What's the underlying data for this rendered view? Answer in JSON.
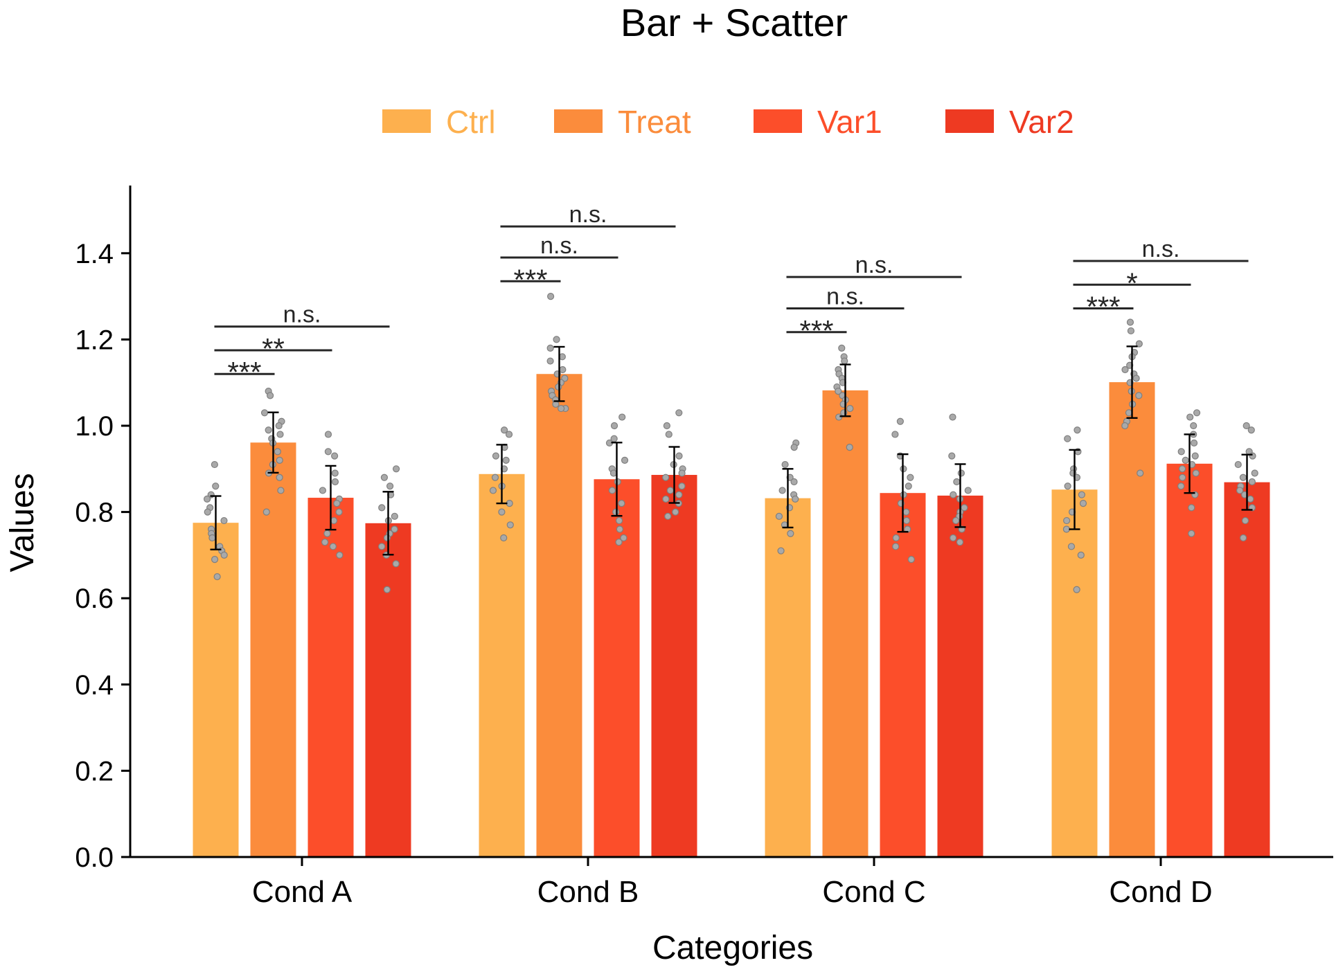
{
  "chart_data": {
    "type": "bar",
    "title": "Bar + Scatter",
    "xlabel": "Categories",
    "ylabel": "Values",
    "ylim": [
      0,
      1.55
    ],
    "yticks": [
      "0.0",
      "0.2",
      "0.4",
      "0.6",
      "0.8",
      "1.0",
      "1.2",
      "1.4"
    ],
    "grid": false,
    "legend_position": "top-center",
    "categories": [
      "Cond A",
      "Cond B",
      "Cond C",
      "Cond D"
    ],
    "series": [
      {
        "name": "Ctrl",
        "color": "#FDB04E",
        "values": [
          0.775,
          0.888,
          0.832,
          0.852
        ],
        "errors": [
          0.062,
          0.068,
          0.068,
          0.092
        ]
      },
      {
        "name": "Treat",
        "color": "#FB8C3C",
        "values": [
          0.961,
          1.12,
          1.082,
          1.101
        ],
        "errors": [
          0.07,
          0.063,
          0.06,
          0.083
        ]
      },
      {
        "name": "Var1",
        "color": "#FC4E2A",
        "values": [
          0.833,
          0.876,
          0.844,
          0.912
        ],
        "errors": [
          0.074,
          0.085,
          0.09,
          0.068
        ]
      },
      {
        "name": "Var2",
        "color": "#EE3A22",
        "values": [
          0.774,
          0.886,
          0.838,
          0.869
        ],
        "errors": [
          0.073,
          0.065,
          0.073,
          0.064
        ]
      }
    ],
    "points": [
      [
        [
          0.91,
          0.86,
          0.84,
          0.83,
          0.81,
          0.8,
          0.78,
          0.76,
          0.75,
          0.74,
          0.72,
          0.71,
          0.7,
          0.69,
          0.65
        ],
        [
          1.08,
          1.07,
          1.03,
          1.01,
          1.0,
          0.99,
          0.98,
          0.97,
          0.96,
          0.94,
          0.92,
          0.91,
          0.89,
          0.88,
          0.85,
          0.8
        ],
        [
          0.98,
          0.94,
          0.93,
          0.89,
          0.87,
          0.85,
          0.83,
          0.82,
          0.8,
          0.78,
          0.75,
          0.73,
          0.72,
          0.7
        ],
        [
          0.9,
          0.88,
          0.86,
          0.84,
          0.81,
          0.79,
          0.78,
          0.76,
          0.75,
          0.74,
          0.72,
          0.7,
          0.68,
          0.62
        ]
      ],
      [
        [
          0.99,
          0.98,
          0.95,
          0.93,
          0.92,
          0.9,
          0.88,
          0.86,
          0.85,
          0.82,
          0.8,
          0.77,
          0.74
        ],
        [
          1.3,
          1.2,
          1.18,
          1.16,
          1.15,
          1.13,
          1.12,
          1.11,
          1.1,
          1.09,
          1.08,
          1.07,
          1.06,
          1.05,
          1.04,
          1.04
        ],
        [
          1.02,
          1.0,
          0.97,
          0.96,
          0.92,
          0.9,
          0.89,
          0.87,
          0.85,
          0.82,
          0.8,
          0.78,
          0.76,
          0.74,
          0.73
        ],
        [
          1.03,
          1.0,
          0.98,
          0.93,
          0.91,
          0.9,
          0.89,
          0.88,
          0.86,
          0.85,
          0.84,
          0.83,
          0.82,
          0.8,
          0.79
        ]
      ],
      [
        [
          0.96,
          0.95,
          0.91,
          0.88,
          0.87,
          0.85,
          0.84,
          0.83,
          0.81,
          0.79,
          0.77,
          0.75,
          0.71
        ],
        [
          1.18,
          1.16,
          1.15,
          1.13,
          1.12,
          1.11,
          1.1,
          1.09,
          1.08,
          1.07,
          1.06,
          1.05,
          1.04,
          1.03,
          1.02,
          0.95
        ],
        [
          1.01,
          0.98,
          0.93,
          0.9,
          0.88,
          0.86,
          0.84,
          0.82,
          0.8,
          0.78,
          0.76,
          0.74,
          0.72,
          0.69
        ],
        [
          1.02,
          0.93,
          0.89,
          0.87,
          0.85,
          0.84,
          0.83,
          0.81,
          0.8,
          0.79,
          0.78,
          0.76,
          0.74,
          0.73
        ]
      ],
      [
        [
          0.99,
          0.97,
          0.94,
          0.9,
          0.89,
          0.88,
          0.86,
          0.84,
          0.82,
          0.8,
          0.78,
          0.76,
          0.72,
          0.7,
          0.62
        ],
        [
          1.24,
          1.22,
          1.19,
          1.17,
          1.16,
          1.14,
          1.13,
          1.12,
          1.11,
          1.1,
          1.08,
          1.07,
          1.05,
          1.03,
          1.01,
          1.0,
          0.89
        ],
        [
          1.03,
          1.02,
          1.0,
          0.98,
          0.96,
          0.94,
          0.93,
          0.92,
          0.91,
          0.9,
          0.89,
          0.88,
          0.86,
          0.84,
          0.81,
          0.75
        ],
        [
          1.0,
          0.99,
          0.94,
          0.93,
          0.91,
          0.89,
          0.88,
          0.87,
          0.86,
          0.85,
          0.84,
          0.83,
          0.81,
          0.78,
          0.74
        ]
      ]
    ],
    "annotations": [
      {
        "category": "Cond A",
        "from": "Ctrl",
        "to": "Treat",
        "label": "***",
        "y": 1.12
      },
      {
        "category": "Cond A",
        "from": "Ctrl",
        "to": "Var1",
        "label": "**",
        "y": 1.175
      },
      {
        "category": "Cond A",
        "from": "Ctrl",
        "to": "Var2",
        "label": "n.s.",
        "y": 1.23
      },
      {
        "category": "Cond B",
        "from": "Ctrl",
        "to": "Treat",
        "label": "***",
        "y": 1.335
      },
      {
        "category": "Cond B",
        "from": "Ctrl",
        "to": "Var1",
        "label": "n.s.",
        "y": 1.39
      },
      {
        "category": "Cond B",
        "from": "Ctrl",
        "to": "Var2",
        "label": "n.s.",
        "y": 1.462
      },
      {
        "category": "Cond C",
        "from": "Ctrl",
        "to": "Treat",
        "label": "***",
        "y": 1.217
      },
      {
        "category": "Cond C",
        "from": "Ctrl",
        "to": "Var1",
        "label": "n.s.",
        "y": 1.272
      },
      {
        "category": "Cond C",
        "from": "Ctrl",
        "to": "Var2",
        "label": "n.s.",
        "y": 1.345
      },
      {
        "category": "Cond D",
        "from": "Ctrl",
        "to": "Treat",
        "label": "***",
        "y": 1.272
      },
      {
        "category": "Cond D",
        "from": "Ctrl",
        "to": "Var1",
        "label": "*",
        "y": 1.327
      },
      {
        "category": "Cond D",
        "from": "Ctrl",
        "to": "Var2",
        "label": "n.s.",
        "y": 1.382
      }
    ],
    "point_color": "#A9A9A9",
    "point_edge_color": "#7F7F7F",
    "errorbar_color": "#000000",
    "annotation_color": "#262626"
  }
}
